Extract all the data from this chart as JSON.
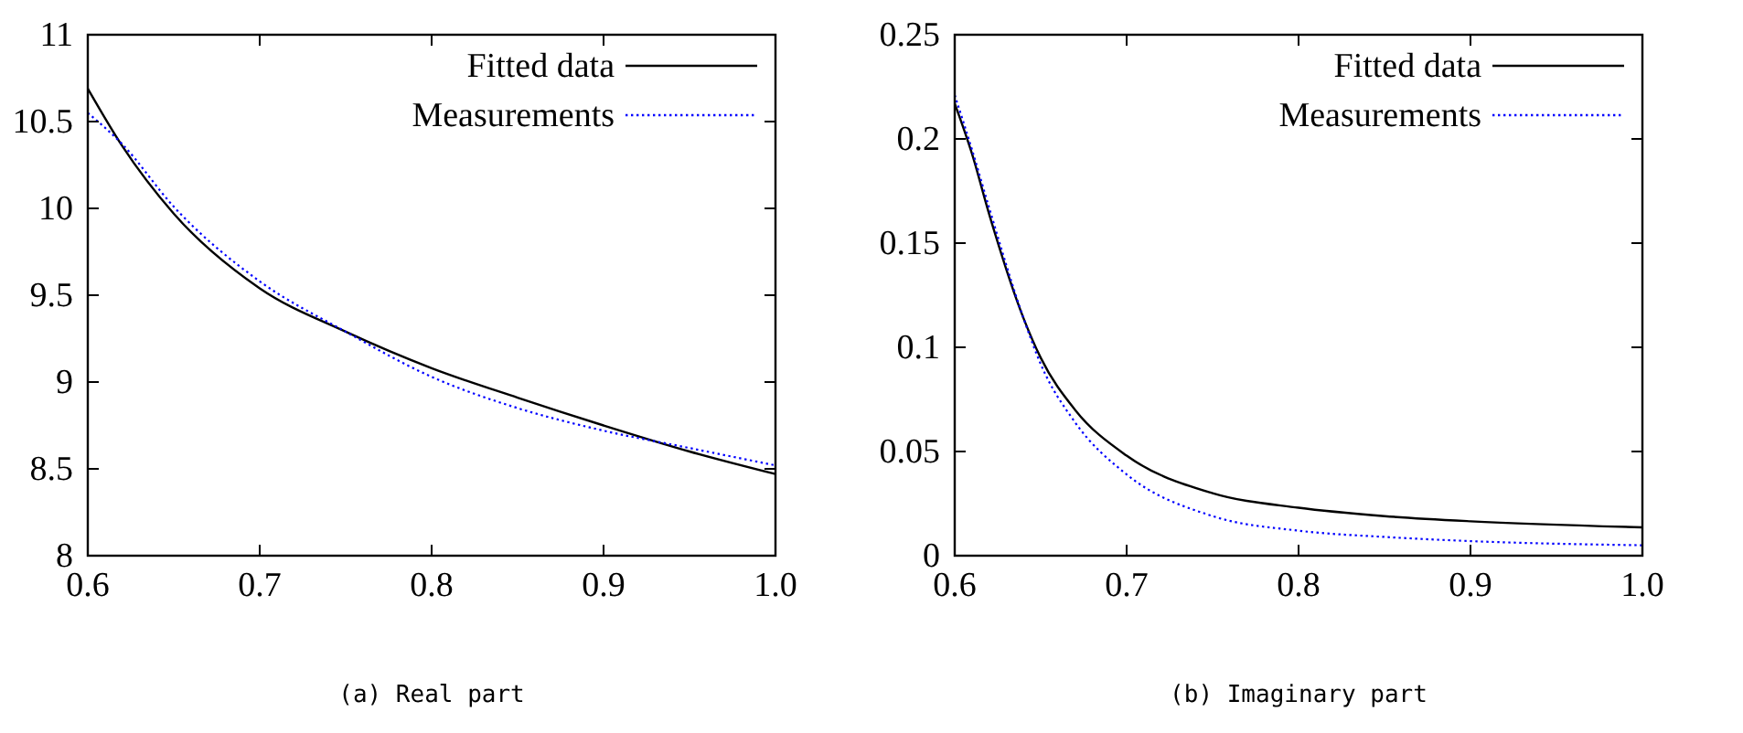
{
  "chart_data": [
    {
      "type": "line",
      "xlabel": "(a) Real part",
      "x": [
        0.6,
        0.62,
        0.65,
        0.7,
        0.75,
        0.8,
        0.85,
        0.9,
        0.95,
        1.0
      ],
      "xlim": [
        0.6,
        1.0
      ],
      "xticks": [
        0.6,
        0.7,
        0.8,
        0.9,
        {
          "value": 1.0,
          "label": "1.0"
        }
      ],
      "ylim": [
        8,
        11
      ],
      "yticks": [
        8,
        8.5,
        9,
        9.5,
        10,
        10.5,
        11
      ],
      "grid": false,
      "legend": "top right",
      "series": [
        {
          "name": "Fitted data",
          "color": "#000000",
          "line_style": "solid",
          "values": [
            10.69,
            10.36,
            9.97,
            9.54,
            9.29,
            9.08,
            8.91,
            8.75,
            8.6,
            8.47
          ]
        },
        {
          "name": "Measurements",
          "color": "#0000ff",
          "line_style": "dotted",
          "values": [
            10.55,
            10.37,
            10.01,
            9.58,
            9.29,
            9.03,
            8.85,
            8.72,
            8.62,
            8.52
          ]
        }
      ]
    },
    {
      "type": "line",
      "xlabel": "(b) Imaginary part",
      "x": [
        0.6,
        0.61,
        0.62,
        0.64,
        0.65,
        0.67,
        0.7,
        0.75,
        0.8,
        0.85,
        0.9,
        1.0
      ],
      "xlim": [
        0.6,
        1.0
      ],
      "xticks": [
        0.6,
        0.7,
        0.8,
        0.9,
        {
          "value": 1.0,
          "label": "1.0"
        }
      ],
      "ylim": [
        0,
        0.25
      ],
      "yticks": [
        0,
        0.05,
        0.1,
        0.15,
        0.2,
        0.25
      ],
      "grid": false,
      "legend": "top right",
      "series": [
        {
          "name": "Fitted data",
          "color": "#000000",
          "line_style": "solid",
          "values": [
            0.217,
            0.193,
            0.164,
            0.114,
            0.095,
            0.07,
            0.048,
            0.03,
            0.023,
            0.019,
            0.0165,
            0.0136
          ]
        },
        {
          "name": "Measurements",
          "color": "#0000ff",
          "line_style": "dotted",
          "values": [
            0.221,
            0.195,
            0.167,
            0.114,
            0.092,
            0.064,
            0.039,
            0.019,
            0.012,
            0.009,
            0.007,
            0.005
          ]
        }
      ]
    }
  ]
}
